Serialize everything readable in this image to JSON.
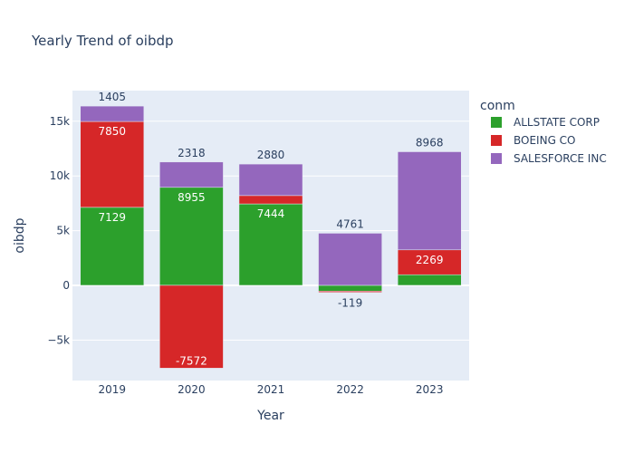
{
  "chart_data": {
    "type": "bar",
    "barmode": "relative",
    "title": "Yearly Trend of oibdp",
    "xlabel": "Year",
    "ylabel": "oibdp",
    "categories": [
      "2019",
      "2020",
      "2021",
      "2022",
      "2023"
    ],
    "ylim": [
      -8700,
      17800
    ],
    "yticks": [
      -5000,
      0,
      5000,
      10000,
      15000
    ],
    "ytick_labels": [
      "−5k",
      "0",
      "5k",
      "10k",
      "15k"
    ],
    "grid": true,
    "legend_title": "conm",
    "legend_position": "right",
    "series": [
      {
        "name": "ALLSTATE CORP",
        "color": "#2ca02c",
        "values": [
          7129,
          8955,
          7444,
          -523,
          973
        ],
        "labels": [
          "7129",
          "8955",
          "7444",
          "",
          ""
        ]
      },
      {
        "name": "BOEING CO",
        "color": "#d62728",
        "values": [
          7850,
          -7572,
          761,
          -119,
          2269
        ],
        "labels": [
          "7850",
          "-7572",
          "",
          "-119",
          "2269"
        ]
      },
      {
        "name": "SALESFORCE INC",
        "color": "#9467bd",
        "values": [
          1405,
          2318,
          2880,
          4761,
          8968
        ],
        "labels": [
          "1405",
          "2318",
          "2880",
          "4761",
          "8968"
        ]
      }
    ]
  }
}
